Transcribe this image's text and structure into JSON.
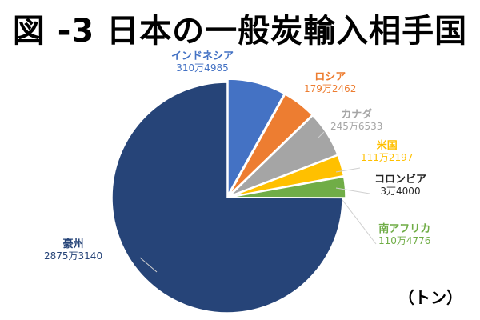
{
  "chart_data": {
    "type": "pie",
    "title": "図 -3 日本の一般炭輸入相手国",
    "unit": "（トン）",
    "start_angle": "12 o'clock, clockwise",
    "slices": [
      {
        "name": "インドネシア",
        "value": 3104985,
        "value_label": "310万4985",
        "color": "#4472C4"
      },
      {
        "name": "ロシア",
        "value": 1792462,
        "value_label": "179万2462",
        "color": "#ED7D31"
      },
      {
        "name": "カナダ",
        "value": 2456533,
        "value_label": "245万6533",
        "color": "#A5A5A5"
      },
      {
        "name": "米国",
        "value": 1112197,
        "value_label": "111万2197",
        "color": "#FFC000"
      },
      {
        "name": "コロンビア",
        "value": 34000,
        "value_label": "3万4000",
        "color": "#5B9BD5",
        "label_color": "#262626"
      },
      {
        "name": "南アフリカ",
        "value": 1104776,
        "value_label": "110万4776",
        "color": "#70AD47"
      },
      {
        "name": "豪州",
        "value": 28753140,
        "value_label": "2875万3140",
        "color": "#264478"
      }
    ]
  }
}
